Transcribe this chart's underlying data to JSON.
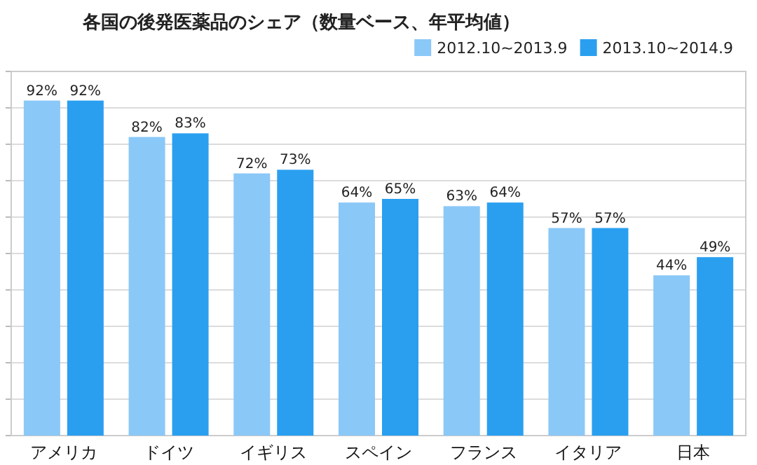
{
  "chart_data": {
    "type": "bar",
    "title": "各国の後発医薬品のシェア（数量ベース、年平均値）",
    "categories": [
      "アメリカ",
      "ドイツ",
      "イギリス",
      "スペイン",
      "フランス",
      "イタリア",
      "日本"
    ],
    "series": [
      {
        "name": "2012.10~2013.9",
        "color": "#8ac8f7",
        "values": [
          92,
          82,
          72,
          64,
          63,
          57,
          44
        ],
        "value_labels": [
          "92%",
          "82%",
          "72%",
          "64%",
          "63%",
          "57%",
          "44%"
        ]
      },
      {
        "name": "2013.10~2014.9",
        "color": "#2a9ff0",
        "values": [
          92,
          83,
          73,
          65,
          64,
          57,
          49
        ],
        "value_labels": [
          "92%",
          "83%",
          "73%",
          "65%",
          "64%",
          "57%",
          "49%"
        ]
      }
    ],
    "ylim": [
      0,
      100
    ],
    "yticks": [
      {
        "value": 0,
        "label": null
      },
      {
        "value": 10,
        "label": null
      },
      {
        "value": 20,
        "label": null
      },
      {
        "value": 30,
        "label": null
      },
      {
        "value": 40,
        "label": null
      },
      {
        "value": 50,
        "label": null
      },
      {
        "value": 60,
        "label": null
      },
      {
        "value": 70,
        "label": null
      },
      {
        "value": 80,
        "label": null
      },
      {
        "value": 90,
        "label": null
      },
      {
        "value": 100,
        "label": null
      }
    ],
    "grid": "y",
    "legend": "top right"
  }
}
